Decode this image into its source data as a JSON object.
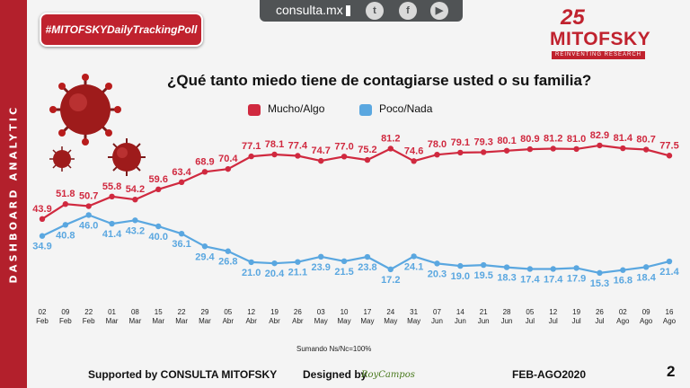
{
  "sidebar_label": "DASHBOARD ANALYTIC",
  "hashtag": "#MITOFSKYDailyTrackingPoll",
  "topbar": {
    "site": "consulta.mx",
    "icons": [
      "twitter-icon",
      "facebook-icon",
      "youtube-icon"
    ]
  },
  "brand": {
    "number": "25",
    "name": "MITOFSKY",
    "tagline": "REINVENTING RESEARCH"
  },
  "title": "¿Qué tanto miedo tiene de contagiarse usted o su familia?",
  "footnote": "Sumando Ns/Nc=100%",
  "footer": {
    "supported": "Supported by   CONSULTA   MITOFSKY",
    "designed": "Designed by",
    "designer": "RoyCampos",
    "period": "FEB-AGO2020",
    "page": "2"
  },
  "colors": {
    "red": "#d0293f",
    "blue": "#5aa7e0",
    "accent": "#b3202c"
  },
  "chart_data": {
    "type": "line",
    "title": "¿Qué tanto miedo tiene de contagiarse usted o su familia?",
    "categories": [
      {
        "day": "02",
        "month": "Feb"
      },
      {
        "day": "09",
        "month": "Feb"
      },
      {
        "day": "22",
        "month": "Feb"
      },
      {
        "day": "01",
        "month": "Mar"
      },
      {
        "day": "08",
        "month": "Mar"
      },
      {
        "day": "15",
        "month": "Mar"
      },
      {
        "day": "22",
        "month": "Mar"
      },
      {
        "day": "29",
        "month": "Mar"
      },
      {
        "day": "05",
        "month": "Abr"
      },
      {
        "day": "12",
        "month": "Abr"
      },
      {
        "day": "19",
        "month": "Abr"
      },
      {
        "day": "26",
        "month": "Abr"
      },
      {
        "day": "03",
        "month": "May"
      },
      {
        "day": "10",
        "month": "May"
      },
      {
        "day": "17",
        "month": "May"
      },
      {
        "day": "24",
        "month": "May"
      },
      {
        "day": "31",
        "month": "May"
      },
      {
        "day": "07",
        "month": "Jun"
      },
      {
        "day": "14",
        "month": "Jun"
      },
      {
        "day": "21",
        "month": "Jun"
      },
      {
        "day": "28",
        "month": "Jun"
      },
      {
        "day": "05",
        "month": "Jul"
      },
      {
        "day": "12",
        "month": "Jul"
      },
      {
        "day": "19",
        "month": "Jul"
      },
      {
        "day": "26",
        "month": "Jul"
      },
      {
        "day": "02",
        "month": "Ago"
      },
      {
        "day": "09",
        "month": "Ago"
      },
      {
        "day": "16",
        "month": "Ago"
      }
    ],
    "series": [
      {
        "name": "Mucho/Algo",
        "color": "#d0293f",
        "values": [
          43.9,
          51.8,
          50.7,
          55.8,
          54.2,
          59.6,
          63.4,
          68.9,
          70.4,
          77.1,
          78.1,
          77.4,
          74.7,
          77.0,
          75.2,
          81.2,
          74.6,
          78.0,
          79.1,
          79.3,
          80.1,
          80.9,
          81.2,
          81.0,
          82.9,
          81.4,
          80.7,
          77.5
        ]
      },
      {
        "name": "Poco/Nada",
        "color": "#5aa7e0",
        "values": [
          34.9,
          40.8,
          46.0,
          41.4,
          43.2,
          40.0,
          36.1,
          29.4,
          26.8,
          21.0,
          20.4,
          21.1,
          23.9,
          21.5,
          23.8,
          17.2,
          24.1,
          20.3,
          19.0,
          19.5,
          18.3,
          17.4,
          17.4,
          17.9,
          15.3,
          16.8,
          18.4,
          21.4
        ]
      }
    ],
    "ylim": [
      0,
      100
    ],
    "grid": false,
    "legend": "top"
  }
}
